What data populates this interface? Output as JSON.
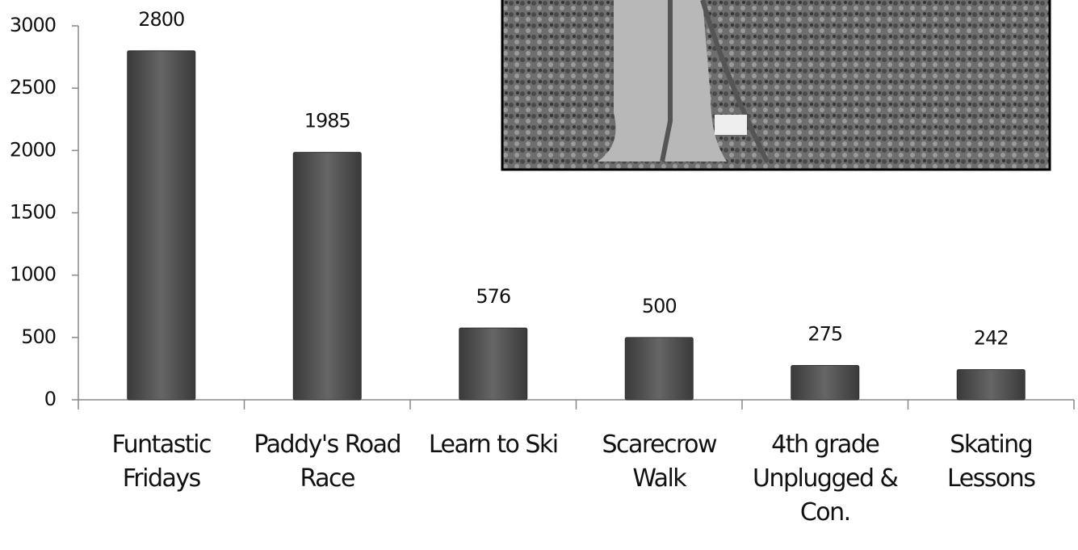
{
  "chart_data": {
    "type": "bar",
    "categories": [
      "Funtastic Fridays",
      "Paddy's Road Race",
      "Learn to Ski",
      "Scarecrow Walk",
      "4th grade Unplugged & Con.",
      "Skating Lessons"
    ],
    "values": [
      2800,
      1985,
      576,
      500,
      275,
      242
    ],
    "color": "#555555",
    "ylim": [
      0,
      3000
    ],
    "yticks": [
      0,
      500,
      1000,
      1500,
      2000,
      2500,
      3000
    ],
    "grid": false
  }
}
